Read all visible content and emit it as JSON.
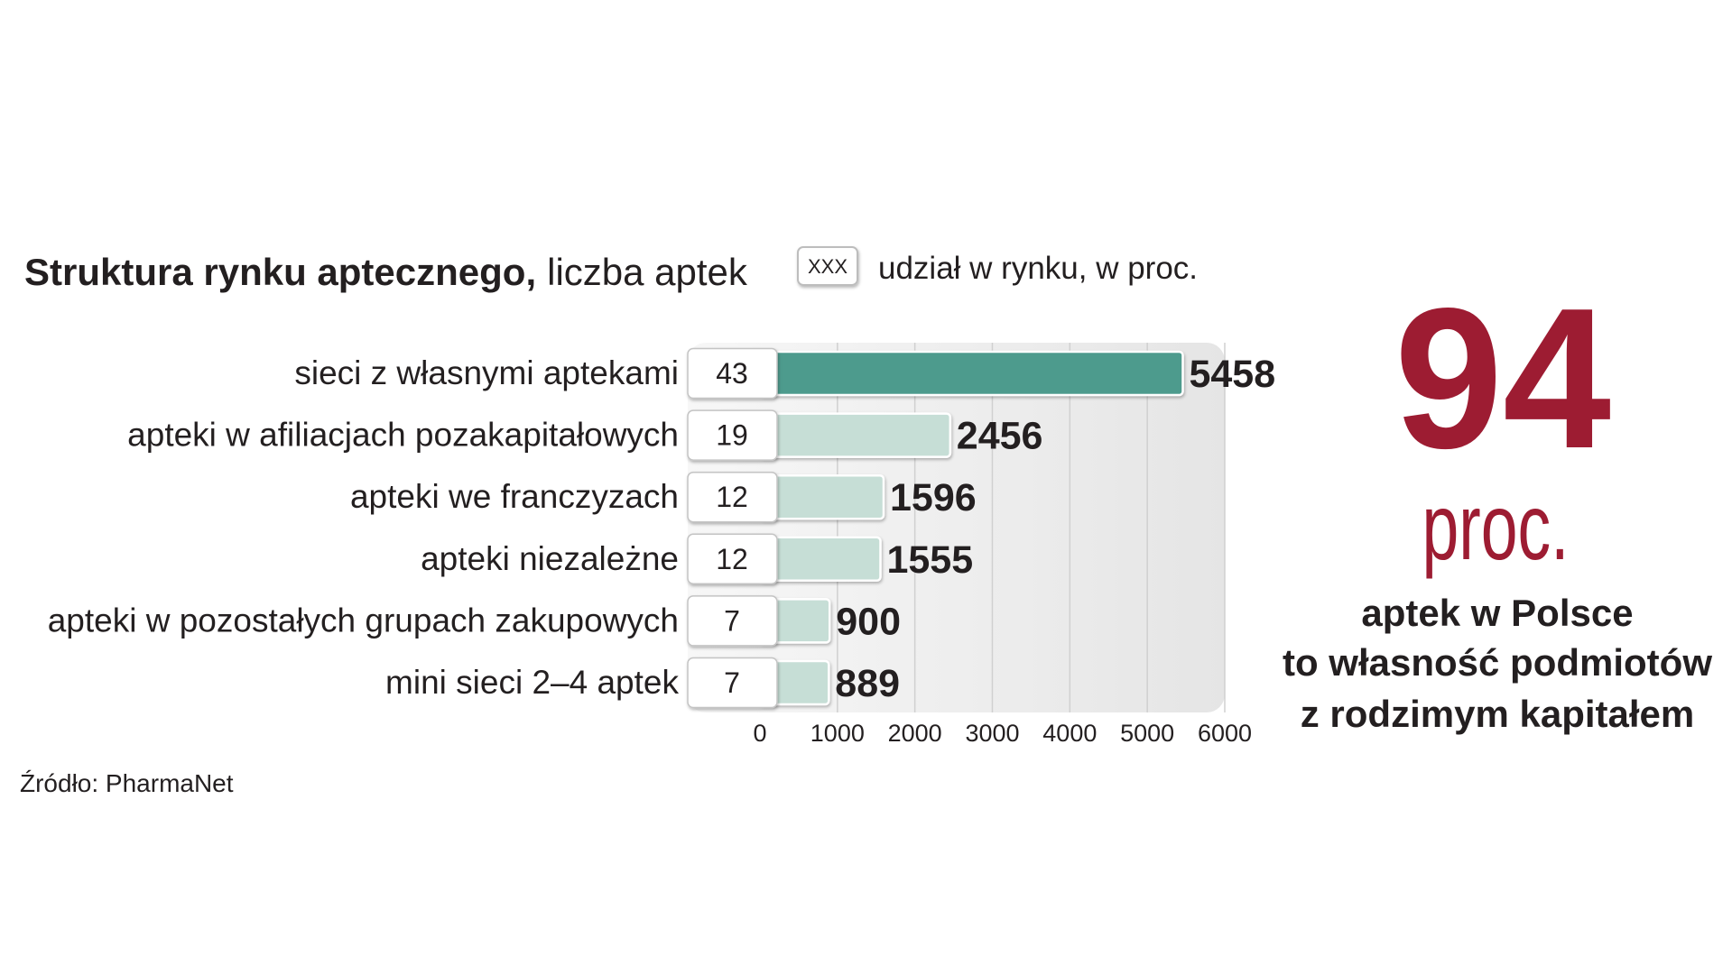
{
  "title": {
    "bold": "Struktura rynku aptecznego,",
    "regular": "liczba aptek"
  },
  "legend": {
    "box_label": "XXX",
    "label": "udział w rynku, w proc."
  },
  "chart_data": {
    "type": "bar",
    "orientation": "horizontal",
    "categories": [
      "sieci z własnymi aptekami",
      "apteki w afiliacjach pozakapitałowych",
      "apteki we franczyzach",
      "apteki niezależne",
      "apteki w pozostałych grupach zakupowych",
      "mini sieci 2–4 aptek"
    ],
    "values": [
      5458,
      2456,
      1596,
      1555,
      900,
      889
    ],
    "shares": [
      43,
      19,
      12,
      12,
      7,
      7
    ],
    "xlim": [
      0,
      6000
    ],
    "xticks": [
      0,
      1000,
      2000,
      3000,
      4000,
      5000,
      6000
    ],
    "grid": true,
    "colors": {
      "highlight_bar": "#4e9b8d",
      "bar": "#c6ded6",
      "background": "#ebebeb",
      "gridline": "#d0d0d0"
    }
  },
  "source": "Źródło: PharmaNet",
  "highlight": {
    "number": "94",
    "unit": "proc.",
    "lines": [
      "aptek w Polsce",
      "to własność podmiotów",
      "z rodzimym kapitałem"
    ],
    "color": "#9d1c32"
  },
  "text_color": "#231f20"
}
